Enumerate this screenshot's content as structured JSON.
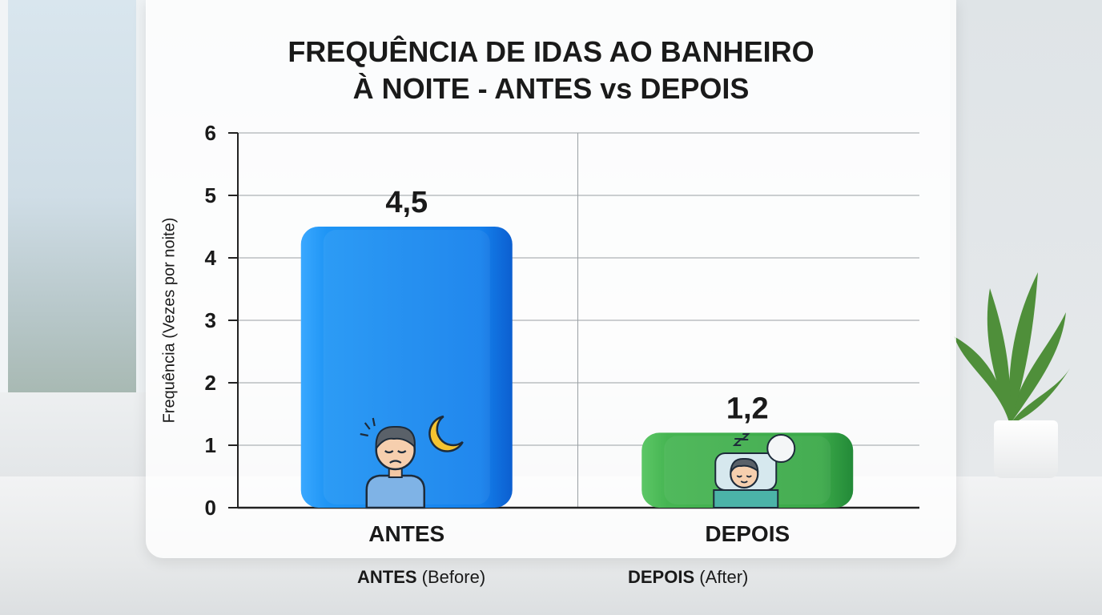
{
  "chart_data": {
    "type": "bar",
    "title_lines": [
      "FREQUÊNCIA DE IDAS AO BANHEIRO",
      "À NOITE - ANTES vs DEPOIS"
    ],
    "ylabel": "Frequência (Vezes por noite)",
    "xlabel": "",
    "ylim": [
      0,
      6
    ],
    "yticks": [
      0,
      1,
      2,
      3,
      4,
      5,
      6
    ],
    "grid": true,
    "categories": [
      "ANTES",
      "DEPOIS"
    ],
    "values": [
      4.5,
      1.2
    ],
    "data_labels": [
      "4,5",
      "1,2"
    ],
    "colors": [
      "#1a8cf2",
      "#3fb34f"
    ]
  },
  "icons": [
    "tired-person-moon-icon",
    "sleeping-person-icon"
  ],
  "footnotes": [
    {
      "bold": "ANTES",
      "rest": " (Before)"
    },
    {
      "bold": "DEPOIS",
      "rest": " (After)"
    }
  ]
}
